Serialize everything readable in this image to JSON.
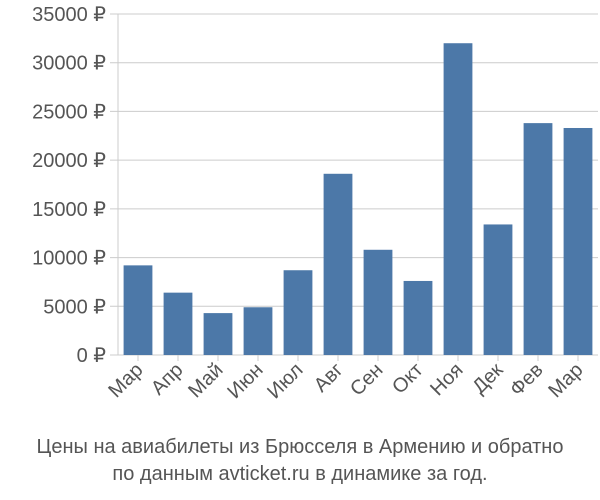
{
  "chart_data": {
    "type": "bar",
    "categories": [
      "Мар",
      "Апр",
      "Май",
      "Июн",
      "Июл",
      "Авг",
      "Сен",
      "Окт",
      "Ноя",
      "Дек",
      "Фев",
      "Мар"
    ],
    "values": [
      9200,
      6400,
      4300,
      4900,
      8700,
      18600,
      10800,
      7600,
      32000,
      13400,
      23800,
      23300
    ],
    "y_ticks": [
      "0 ₽",
      "5000 ₽",
      "10000 ₽",
      "15000 ₽",
      "20000 ₽",
      "25000 ₽",
      "30000 ₽",
      "35000 ₽"
    ],
    "ylim": [
      0,
      35000
    ],
    "grid": true,
    "bar_color": "#4c78a8",
    "title_line1": "Цены на авиабилеты из Брюсселя в Армению и обратно",
    "title_line2": "по данным avticket.ru в динамике за год."
  }
}
